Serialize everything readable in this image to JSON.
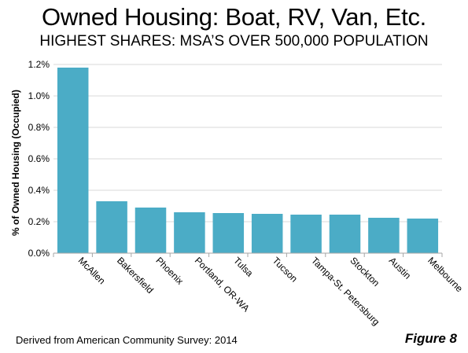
{
  "header": {
    "title": "Owned Housing: Boat, RV, Van, Etc.",
    "subtitle": "HIGHEST SHARES: MSA’S OVER 500,000 POPULATION"
  },
  "footer": {
    "source": "Derived from American Community Survey: 2014",
    "figure_label": "Figure 8"
  },
  "chart_data": {
    "type": "bar",
    "title": "Owned Housing: Boat, RV, Van, Etc.",
    "subtitle": "HIGHEST SHARES: MSA’S OVER 500,000 POPULATION",
    "ylabel": "% of Owned Housing (Occupied)",
    "categories": [
      "McAllen",
      "Bakersfield",
      "Phoenix",
      "Portland, OR-WA",
      "Tulsa",
      "Tucson",
      "Tampa-St. Petersburg",
      "Stockton",
      "Austin",
      "Melbourne"
    ],
    "values": [
      1.18,
      0.33,
      0.29,
      0.26,
      0.255,
      0.25,
      0.245,
      0.245,
      0.225,
      0.22
    ],
    "ylim": [
      0,
      1.2
    ],
    "yticks": [
      "0.0%",
      "0.2%",
      "0.4%",
      "0.6%",
      "0.8%",
      "1.0%",
      "1.2%"
    ],
    "bar_color": "#4BACC6",
    "grid": true,
    "legend": "none"
  }
}
